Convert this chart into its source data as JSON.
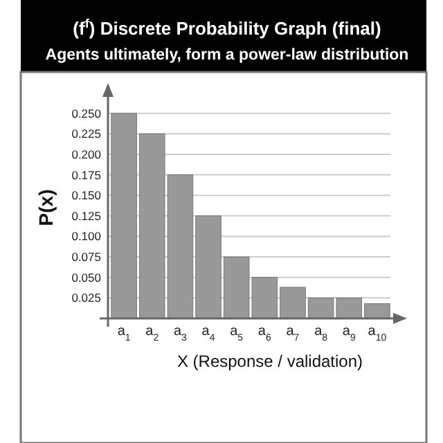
{
  "chart_data": {
    "type": "bar",
    "title": "(f$^{f}$) Discrete Probability Graph (final)",
    "subtitle": "Agents ultimately, form a power-law distribution",
    "xlabel": "X (Response / validation)",
    "ylabel": "P(x)",
    "categories": [
      "a$_{1}$",
      "a$_{2}$",
      "a$_{3}$",
      "a$_{4}$",
      "a$_{5}$",
      "a$_{6}$",
      "a$_{7}$",
      "a$_{8}$",
      "a$_{9}$",
      "a$_{10}$"
    ],
    "values": [
      0.25,
      0.225,
      0.175,
      0.125,
      0.075,
      0.05,
      0.038,
      0.025,
      0.025,
      0.018
    ],
    "color": "#999999",
    "ylim": [
      0,
      0.27
    ],
    "yticks": [
      {
        "value": 0,
        "label": null
      },
      {
        "value": 0.025,
        "label": "0.025"
      },
      {
        "value": 0.05,
        "label": "0.050"
      },
      {
        "value": 0.075,
        "label": "0.075"
      },
      {
        "value": 0.1,
        "label": "0.100"
      },
      {
        "value": 0.125,
        "label": "0.125"
      },
      {
        "value": 0.15,
        "label": "0.150"
      },
      {
        "value": 0.175,
        "label": "0.175"
      },
      {
        "value": 0.2,
        "label": "0.200"
      },
      {
        "value": 0.225,
        "label": "0.225"
      },
      {
        "value": 0.25,
        "label": "0.250"
      }
    ],
    "grid": "y"
  }
}
